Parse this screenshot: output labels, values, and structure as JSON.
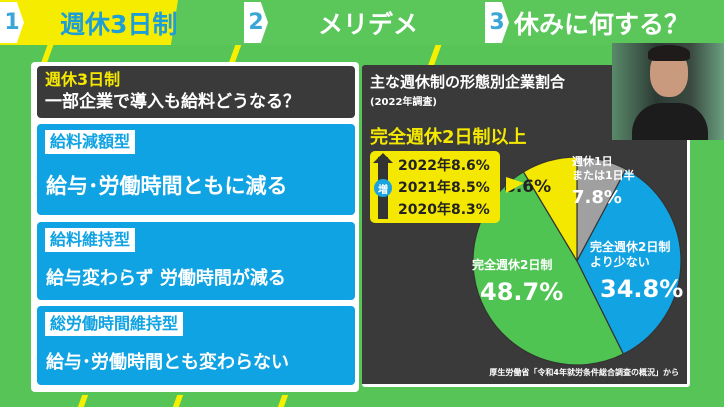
{
  "nav": {
    "tabs": [
      {
        "num": "1",
        "label": "週休3日制",
        "active": true
      },
      {
        "num": "2",
        "label": "メリデメ",
        "active": false
      },
      {
        "num": "3",
        "label": "休みに何する？",
        "active": false
      }
    ]
  },
  "left_panel": {
    "title": "週休3日制",
    "subtitle": "一部企業で導入も給料どうなる？",
    "types": [
      {
        "tag": "給料減額型",
        "text": "給与･労働時間ともに減る"
      },
      {
        "tag": "給料維持型",
        "text": "給与変わらず 労働時間が減る"
      },
      {
        "tag": "総労働時間維持型",
        "text": "給与･労働時間とも変わらない"
      }
    ]
  },
  "right_panel": {
    "title": "主な週休制の形態別企業割合",
    "subtitle": "(2022年調査)",
    "highlight_label": "完全週休2日制以上",
    "increase_badge": "増",
    "trend": [
      "2022年8.6%",
      "2021年8.5%",
      "2020年8.3%"
    ],
    "source": "厚生労働省「令和4年就労条件総合調査の概況」から"
  },
  "chart_data": {
    "type": "pie",
    "start": "top",
    "direction": "clockwise",
    "slices": [
      {
        "label_lines": [
          "週休1日",
          "または1日半"
        ],
        "value": 7.8,
        "value_label": "7.8%",
        "color": "#a0a0a0"
      },
      {
        "label_lines": [
          "完全週休2日制",
          "より少ない"
        ],
        "value": 34.8,
        "value_label": "34.8%",
        "color": "#12a3e2"
      },
      {
        "label_lines": [
          "完全週休2日制"
        ],
        "value": 48.7,
        "value_label": "48.7%",
        "color": "#4fc452"
      },
      {
        "label_lines": [],
        "value": 8.6,
        "value_label": "8.6%",
        "color": "#f5e800"
      }
    ]
  },
  "colors": {
    "green": "#5bc75b",
    "yellow": "#f5e800",
    "blue": "#0fa3e3",
    "dark": "#3a3a3a"
  }
}
